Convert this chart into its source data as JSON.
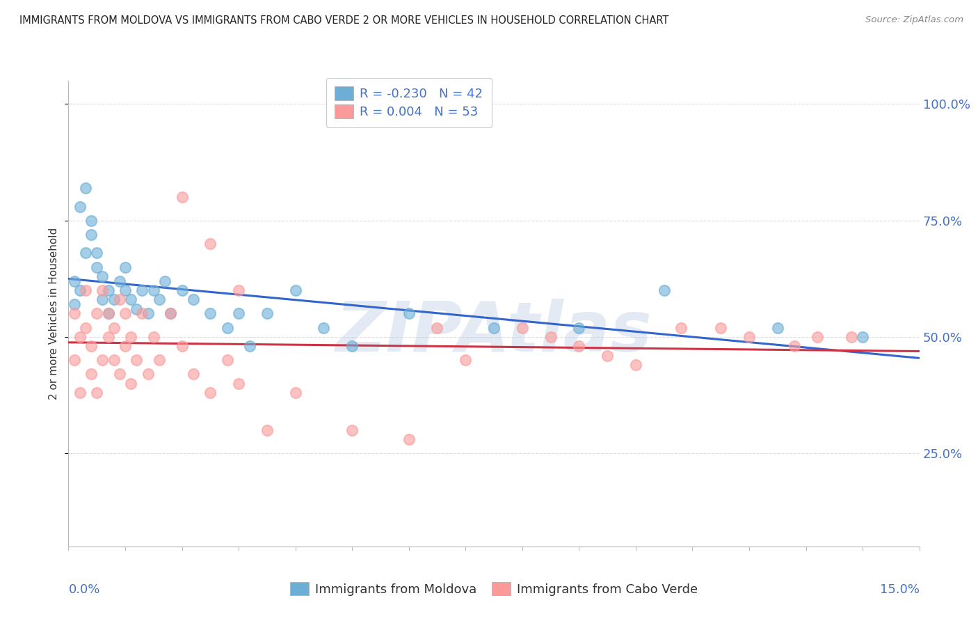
{
  "title": "IMMIGRANTS FROM MOLDOVA VS IMMIGRANTS FROM CABO VERDE 2 OR MORE VEHICLES IN HOUSEHOLD CORRELATION CHART",
  "source": "Source: ZipAtlas.com",
  "ylabel": "2 or more Vehicles in Household",
  "ytick_labels": [
    "25.0%",
    "50.0%",
    "75.0%",
    "100.0%"
  ],
  "ytick_values": [
    0.25,
    0.5,
    0.75,
    1.0
  ],
  "xmin": 0.0,
  "xmax": 0.15,
  "ymin": 0.05,
  "ymax": 1.05,
  "moldova_color": "#6baed6",
  "caboverde_color": "#fb9a99",
  "moldova_trendline_color": "#3366cc",
  "caboverde_trendline_color": "#cc3344",
  "moldova_R": -0.23,
  "moldova_N": 42,
  "caboverde_R": 0.004,
  "caboverde_N": 53,
  "legend_label_moldova": "Immigrants from Moldova",
  "legend_label_caboverde": "Immigrants from Cabo Verde",
  "moldova_x": [
    0.001,
    0.001,
    0.002,
    0.002,
    0.003,
    0.003,
    0.004,
    0.004,
    0.005,
    0.005,
    0.006,
    0.006,
    0.007,
    0.007,
    0.008,
    0.009,
    0.01,
    0.01,
    0.011,
    0.012,
    0.013,
    0.014,
    0.015,
    0.016,
    0.017,
    0.018,
    0.02,
    0.022,
    0.025,
    0.028,
    0.03,
    0.032,
    0.035,
    0.04,
    0.045,
    0.05,
    0.06,
    0.075,
    0.09,
    0.105,
    0.125,
    0.14
  ],
  "moldova_y": [
    0.62,
    0.57,
    0.6,
    0.78,
    0.82,
    0.68,
    0.75,
    0.72,
    0.68,
    0.65,
    0.63,
    0.58,
    0.6,
    0.55,
    0.58,
    0.62,
    0.65,
    0.6,
    0.58,
    0.56,
    0.6,
    0.55,
    0.6,
    0.58,
    0.62,
    0.55,
    0.6,
    0.58,
    0.55,
    0.52,
    0.55,
    0.48,
    0.55,
    0.6,
    0.52,
    0.48,
    0.55,
    0.52,
    0.52,
    0.6,
    0.52,
    0.5
  ],
  "caboverde_x": [
    0.001,
    0.001,
    0.002,
    0.002,
    0.003,
    0.003,
    0.004,
    0.004,
    0.005,
    0.005,
    0.006,
    0.006,
    0.007,
    0.007,
    0.008,
    0.008,
    0.009,
    0.009,
    0.01,
    0.01,
    0.011,
    0.011,
    0.012,
    0.013,
    0.014,
    0.015,
    0.016,
    0.018,
    0.02,
    0.022,
    0.025,
    0.028,
    0.03,
    0.035,
    0.04,
    0.05,
    0.06,
    0.065,
    0.07,
    0.08,
    0.085,
    0.09,
    0.095,
    0.1,
    0.108,
    0.115,
    0.12,
    0.128,
    0.132,
    0.138,
    0.02,
    0.025,
    0.03
  ],
  "caboverde_y": [
    0.55,
    0.45,
    0.5,
    0.38,
    0.6,
    0.52,
    0.48,
    0.42,
    0.55,
    0.38,
    0.6,
    0.45,
    0.55,
    0.5,
    0.52,
    0.45,
    0.58,
    0.42,
    0.55,
    0.48,
    0.5,
    0.4,
    0.45,
    0.55,
    0.42,
    0.5,
    0.45,
    0.55,
    0.48,
    0.42,
    0.38,
    0.45,
    0.4,
    0.3,
    0.38,
    0.3,
    0.28,
    0.52,
    0.45,
    0.52,
    0.5,
    0.48,
    0.46,
    0.44,
    0.52,
    0.52,
    0.5,
    0.48,
    0.5,
    0.5,
    0.8,
    0.7,
    0.6
  ],
  "grid_color": "#dddddd",
  "watermark_text": "ZIPAtlas",
  "watermark_color": "#b0c4de",
  "watermark_alpha": 0.35
}
